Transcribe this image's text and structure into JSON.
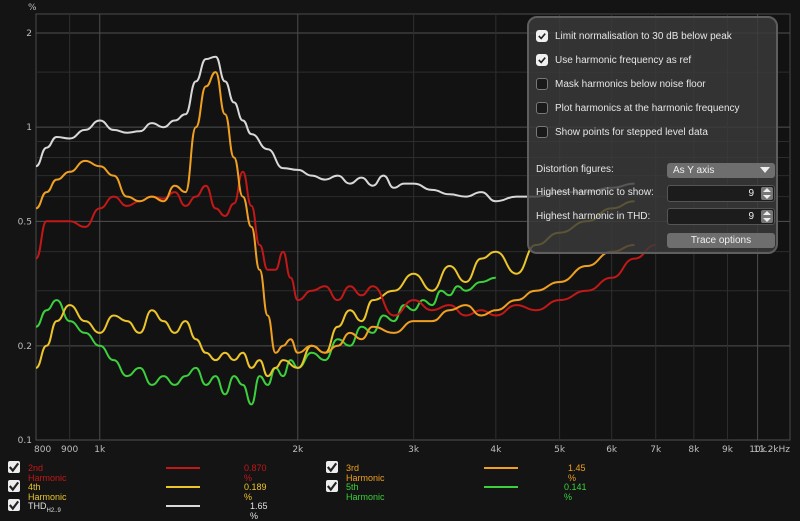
{
  "chart_data": {
    "type": "line",
    "title": "",
    "xlabel": "",
    "ylabel": "%",
    "xscale": "log",
    "yscale": "log",
    "xlim": [
      800,
      11200
    ],
    "ylim": [
      0.1,
      2.3
    ],
    "x_ticks": [
      800,
      900,
      1000,
      2000,
      3000,
      4000,
      5000,
      6000,
      7000,
      8000,
      9000,
      10000,
      11200
    ],
    "x_tick_labels": [
      "800",
      "900",
      "1k",
      "2k",
      "3k",
      "4k",
      "5k",
      "6k",
      "7k",
      "8k",
      "9k",
      "10k",
      "11.2kHz"
    ],
    "y_ticks": [
      0.1,
      0.2,
      0.5,
      1,
      2
    ],
    "y_tick_labels": [
      "0.1",
      "0.2",
      "0.5",
      "1",
      "2"
    ],
    "y_minor_ticks": [
      0.3,
      0.4,
      0.6,
      0.7,
      0.8,
      0.9,
      1.5
    ],
    "grid": true,
    "series": [
      {
        "name": "THD",
        "color": "#d8d8d8",
        "x": [
          800,
          830,
          860,
          900,
          950,
          1000,
          1050,
          1100,
          1150,
          1200,
          1250,
          1300,
          1350,
          1400,
          1450,
          1500,
          1550,
          1600,
          1650,
          1700,
          1800,
          1900,
          2000,
          2100,
          2200,
          2300,
          2400,
          2500,
          2600,
          2700,
          2800,
          2900,
          3000,
          3200,
          3400,
          3600,
          3800,
          4000,
          4300,
          4600,
          5000,
          5500,
          6000,
          6500
        ],
        "y": [
          0.75,
          0.86,
          0.93,
          0.92,
          0.98,
          1.05,
          0.98,
          0.96,
          0.97,
          1.03,
          1.0,
          1.05,
          1.1,
          1.4,
          1.65,
          1.68,
          1.4,
          1.2,
          1.05,
          0.95,
          0.85,
          0.74,
          0.73,
          0.7,
          0.68,
          0.7,
          0.66,
          0.69,
          0.65,
          0.7,
          0.64,
          0.66,
          0.66,
          0.63,
          0.61,
          0.6,
          0.62,
          0.58,
          0.6,
          0.6,
          0.62,
          0.62,
          0.64,
          0.66
        ]
      },
      {
        "name": "2nd Harmonic",
        "value": "0.870 %",
        "color": "#c31818",
        "x": [
          800,
          830,
          860,
          900,
          950,
          1000,
          1050,
          1100,
          1150,
          1200,
          1250,
          1300,
          1350,
          1400,
          1450,
          1500,
          1550,
          1600,
          1650,
          1700,
          1750,
          1800,
          1850,
          1900,
          1950,
          2000,
          2100,
          2200,
          2300,
          2400,
          2500,
          2600,
          2800,
          3000,
          3200,
          3400,
          3600,
          3800,
          4000,
          4300,
          4600,
          5000,
          5500,
          6000,
          6500,
          7000
        ],
        "y": [
          0.38,
          0.5,
          0.5,
          0.5,
          0.48,
          0.55,
          0.6,
          0.56,
          0.58,
          0.6,
          0.59,
          0.62,
          0.56,
          0.6,
          0.65,
          0.55,
          0.52,
          0.57,
          0.72,
          0.56,
          0.42,
          0.35,
          0.35,
          0.4,
          0.33,
          0.28,
          0.3,
          0.31,
          0.28,
          0.31,
          0.29,
          0.31,
          0.25,
          0.28,
          0.26,
          0.27,
          0.25,
          0.26,
          0.25,
          0.27,
          0.26,
          0.28,
          0.3,
          0.33,
          0.38,
          0.42
        ]
      },
      {
        "name": "3rd Harmonic",
        "value": "1.45 %",
        "color": "#f0a020",
        "x": [
          800,
          830,
          860,
          900,
          950,
          1000,
          1050,
          1100,
          1150,
          1200,
          1250,
          1300,
          1350,
          1400,
          1450,
          1500,
          1550,
          1600,
          1650,
          1700,
          1750,
          1800,
          1850,
          1900,
          1950,
          2000,
          2100,
          2200,
          2300,
          2400,
          2500,
          2600,
          2800,
          3000,
          3200,
          3400,
          3600,
          3800,
          4000,
          4300,
          4600,
          5000,
          5500,
          6000,
          6500
        ],
        "y": [
          0.55,
          0.62,
          0.68,
          0.72,
          0.78,
          0.75,
          0.7,
          0.6,
          0.58,
          0.6,
          0.58,
          0.65,
          0.62,
          1.0,
          1.35,
          1.5,
          1.1,
          0.8,
          0.6,
          0.48,
          0.35,
          0.25,
          0.19,
          0.2,
          0.21,
          0.19,
          0.2,
          0.19,
          0.2,
          0.22,
          0.21,
          0.23,
          0.22,
          0.24,
          0.24,
          0.26,
          0.27,
          0.25,
          0.26,
          0.28,
          0.3,
          0.32,
          0.36,
          0.4,
          0.42
        ]
      },
      {
        "name": "4th Harmonic",
        "value": "0.189 %",
        "color": "#ecc52a",
        "x": [
          800,
          830,
          860,
          900,
          950,
          1000,
          1050,
          1100,
          1150,
          1200,
          1250,
          1300,
          1350,
          1400,
          1450,
          1500,
          1550,
          1600,
          1650,
          1700,
          1750,
          1800,
          1850,
          1900,
          2000,
          2100,
          2200,
          2300,
          2400,
          2500,
          2600,
          2800,
          3000,
          3200,
          3400,
          3600,
          3800,
          4000,
          4300,
          4600,
          5000,
          5500,
          6000,
          6500
        ],
        "y": [
          0.17,
          0.2,
          0.24,
          0.27,
          0.24,
          0.22,
          0.25,
          0.24,
          0.22,
          0.26,
          0.24,
          0.22,
          0.24,
          0.21,
          0.19,
          0.18,
          0.19,
          0.18,
          0.19,
          0.17,
          0.18,
          0.16,
          0.17,
          0.18,
          0.17,
          0.2,
          0.19,
          0.23,
          0.26,
          0.24,
          0.28,
          0.3,
          0.34,
          0.3,
          0.36,
          0.32,
          0.38,
          0.4,
          0.34,
          0.42,
          0.46,
          0.5,
          0.55,
          0.58
        ]
      },
      {
        "name": "5th Harmonic",
        "value": "0.141 %",
        "color": "#3cd03c",
        "x": [
          800,
          830,
          860,
          900,
          950,
          1000,
          1050,
          1100,
          1150,
          1200,
          1250,
          1300,
          1350,
          1400,
          1450,
          1500,
          1550,
          1600,
          1650,
          1700,
          1750,
          1800,
          1850,
          1900,
          1950,
          2000,
          2100,
          2200,
          2300,
          2400,
          2500,
          2600,
          2700,
          2800,
          2900,
          3000,
          3100,
          3200,
          3300,
          3400,
          3500,
          3600,
          3800,
          4000
        ],
        "y": [
          0.23,
          0.26,
          0.28,
          0.24,
          0.22,
          0.2,
          0.18,
          0.16,
          0.17,
          0.15,
          0.16,
          0.15,
          0.16,
          0.17,
          0.15,
          0.16,
          0.14,
          0.16,
          0.15,
          0.13,
          0.16,
          0.15,
          0.17,
          0.16,
          0.18,
          0.17,
          0.19,
          0.18,
          0.21,
          0.2,
          0.23,
          0.22,
          0.25,
          0.24,
          0.27,
          0.26,
          0.28,
          0.27,
          0.3,
          0.29,
          0.31,
          0.3,
          0.32,
          0.33
        ]
      }
    ]
  },
  "y_unit": "%",
  "options": {
    "limit_normalisation": {
      "label": "Limit normalisation to 30 dB below peak",
      "checked": true
    },
    "use_harmonic_freq": {
      "label": "Use harmonic frequency as ref",
      "checked": true
    },
    "mask_below_noise": {
      "label": "Mask harmonics below noise floor",
      "checked": false
    },
    "plot_at_harmonic_freq": {
      "label": "Plot harmonics at the harmonic frequency",
      "checked": false
    },
    "show_points_stepped": {
      "label": "Show points for stepped level data",
      "checked": false
    },
    "distortion_figures_label": "Distortion figures:",
    "distortion_figures_value": "As Y axis",
    "highest_harmonic_show_label": "Highest harmonic to show:",
    "highest_harmonic_show_value": "9",
    "highest_harmonic_thd_label": "Highest harmonic in THD:",
    "highest_harmonic_thd_value": "9",
    "trace_options_button": "Trace options"
  },
  "legend": {
    "h2": {
      "name": "2nd Harmonic",
      "value": "0.870 %",
      "color": "#c31818"
    },
    "h3": {
      "name": "3rd Harmonic",
      "value": "1.45 %",
      "color": "#f0a020"
    },
    "h4": {
      "name": "4th Harmonic",
      "value": "0.189 %",
      "color": "#ecc52a"
    },
    "h5": {
      "name": "5th Harmonic",
      "value": "0.141 %",
      "color": "#3cd03c"
    },
    "thd": {
      "name": "THD",
      "sub": "H2..9",
      "value": "1.65 %",
      "color": "#d8d8d8"
    }
  }
}
